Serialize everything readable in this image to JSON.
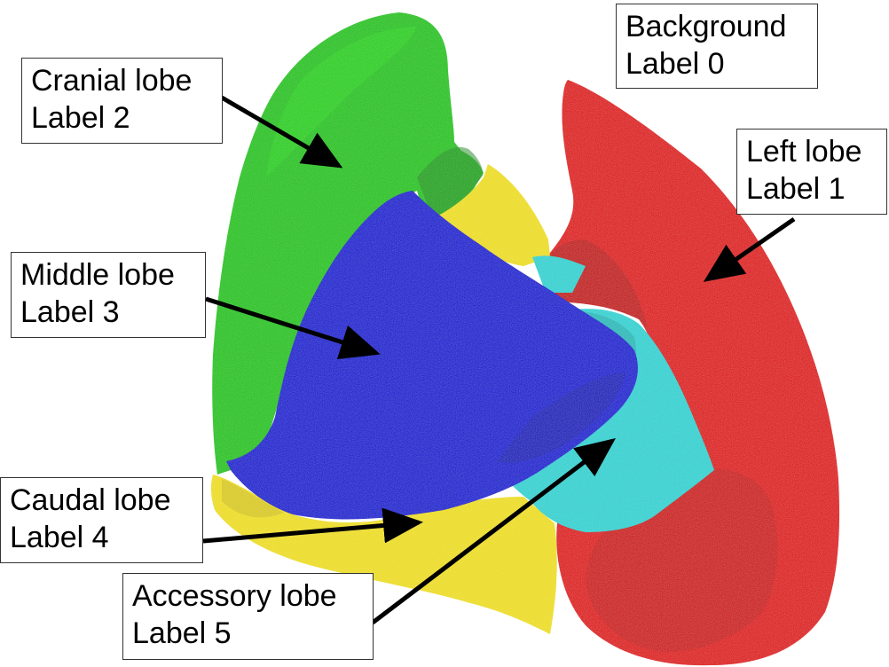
{
  "figure": {
    "labels": [
      {
        "name": "Background",
        "label": "Label 0"
      },
      {
        "name": "Left lobe",
        "label": "Label 1"
      },
      {
        "name": "Cranial lobe",
        "label": "Label 2"
      },
      {
        "name": "Middle lobe",
        "label": "Label 3"
      },
      {
        "name": "Caudal lobe",
        "label": "Label 4"
      },
      {
        "name": "Accessory lobe",
        "label": "Label 5"
      }
    ],
    "colors": {
      "background": "#ffffff",
      "left_lobe": "#e00000",
      "cranial_lobe": "#19c600",
      "middle_lobe": "#0a14d2",
      "caudal_lobe": "#f0e000",
      "accessory_lobe": "#2fd4d4",
      "arrow": "#000000"
    }
  }
}
